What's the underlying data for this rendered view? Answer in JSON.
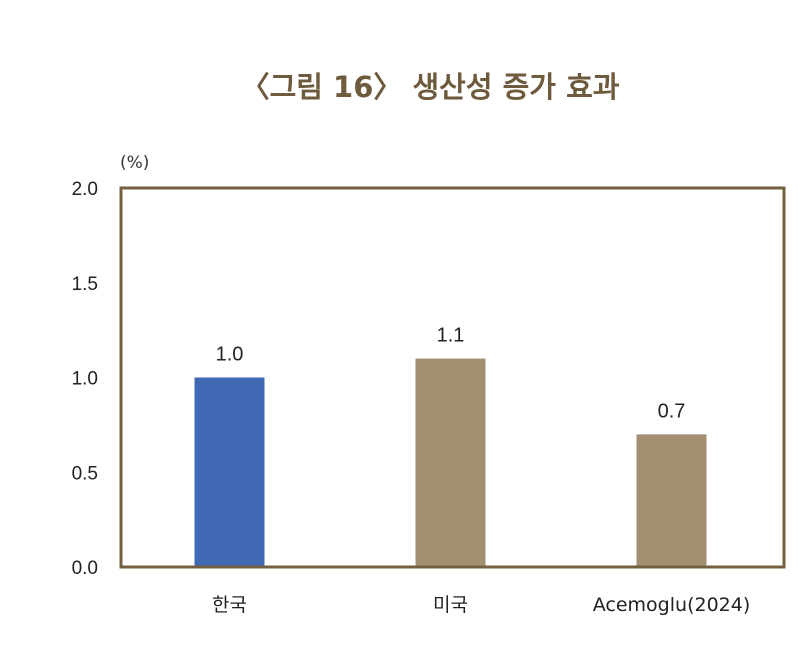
{
  "chart_data": {
    "type": "bar",
    "title": "〈그림 16〉 생산성 증가 효과",
    "unit_label": "(%)",
    "xlabel": "",
    "ylabel": "",
    "categories": [
      "한국",
      "미국",
      "Acemoglu(2024)"
    ],
    "values": [
      1.0,
      1.1,
      0.7
    ],
    "value_labels": [
      "1.0",
      "1.1",
      "0.7"
    ],
    "bar_colors": [
      "#4169b4",
      "#a38f72",
      "#a38f72"
    ],
    "ylim": [
      0,
      2.0
    ],
    "yticks": [
      0.0,
      0.5,
      1.0,
      1.5,
      2.0
    ],
    "ytick_labels": [
      "0.0",
      "0.5",
      "1.0",
      "1.5",
      "2.0"
    ],
    "frame_color": "#74603f",
    "title_color": "#6e5a3c",
    "grid": false,
    "legend": "none"
  }
}
